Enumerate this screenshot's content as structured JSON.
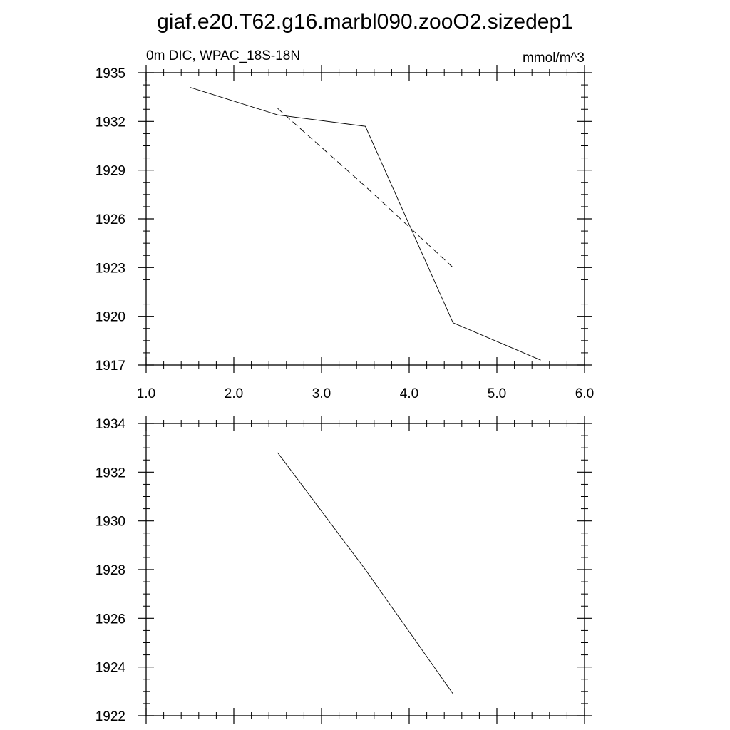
{
  "title": "giaf.e20.T62.g16.marbl090.zooO2.sizedep1",
  "chart_data": [
    {
      "type": "line",
      "left_label": "0m DIC, WPAC_18S-18N",
      "right_label": "mmol/m^3",
      "xlim": [
        1.0,
        6.0
      ],
      "ylim": [
        1917,
        1935
      ],
      "xticks": [
        1.0,
        2.0,
        3.0,
        4.0,
        5.0,
        6.0
      ],
      "xtick_labels": [
        "1.0",
        "2.0",
        "3.0",
        "4.0",
        "5.0",
        "6.0"
      ],
      "yticks": [
        1917,
        1920,
        1923,
        1926,
        1929,
        1932,
        1935
      ],
      "ytick_labels": [
        "1917",
        "1920",
        "1923",
        "1926",
        "1929",
        "1932",
        "1935"
      ],
      "grid": false,
      "series": [
        {
          "style": "solid",
          "x": [
            1.5,
            2.5,
            3.5,
            4.5,
            5.5
          ],
          "y": [
            1934.1,
            1932.4,
            1931.7,
            1919.6,
            1917.3
          ]
        },
        {
          "style": "dashed",
          "x": [
            2.5,
            3.5,
            4.5
          ],
          "y": [
            1932.8,
            1928.0,
            1923.0
          ]
        }
      ]
    },
    {
      "type": "line",
      "xlim": [
        1.0,
        6.0
      ],
      "ylim": [
        1922,
        1934
      ],
      "xticks": [
        1.0,
        2.0,
        3.0,
        4.0,
        5.0,
        6.0
      ],
      "xtick_labels": [],
      "yticks": [
        1922,
        1924,
        1926,
        1928,
        1930,
        1932,
        1934
      ],
      "ytick_labels": [
        "1922",
        "1924",
        "1926",
        "1928",
        "1930",
        "1932",
        "1934"
      ],
      "grid": false,
      "series": [
        {
          "style": "solid",
          "x": [
            2.5,
            3.5,
            4.5
          ],
          "y": [
            1932.8,
            1928.0,
            1922.9
          ]
        }
      ]
    }
  ]
}
